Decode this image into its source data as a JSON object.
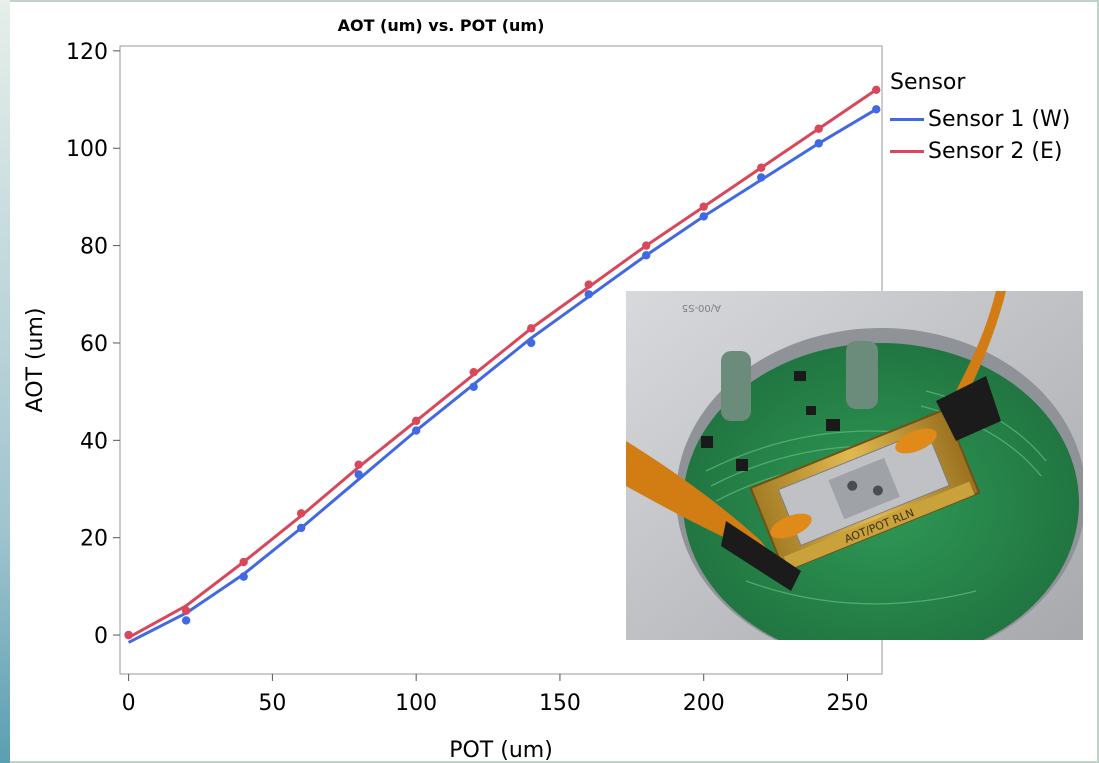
{
  "chart_data": {
    "type": "scatter",
    "title": "AOT (um) vs. POT (um)",
    "xlabel": "POT (um)",
    "ylabel": "AOT (um)",
    "xlim": [
      -3,
      262
    ],
    "ylim": [
      -8,
      121
    ],
    "xticks": [
      0,
      50,
      100,
      150,
      200,
      250
    ],
    "yticks": [
      0,
      20,
      40,
      60,
      80,
      100,
      120
    ],
    "grid": false,
    "legend_title": "Sensor",
    "legend_position": "right",
    "series": [
      {
        "name": "Sensor 1 (W)",
        "color": "#4169e1",
        "x": [
          0,
          20,
          40,
          60,
          80,
          100,
          120,
          140,
          160,
          180,
          200,
          220,
          240,
          260
        ],
        "y": [
          0,
          3,
          12,
          22,
          33,
          42,
          51,
          60,
          70,
          78,
          86,
          94,
          101,
          108
        ],
        "fit_x": [
          0,
          20,
          40,
          60,
          80,
          100,
          120,
          140,
          160,
          180,
          200,
          220,
          240,
          260
        ],
        "fit_y": [
          -1.5,
          4.5,
          12.5,
          22,
          32,
          42,
          51.5,
          61,
          69.5,
          78,
          86,
          93.5,
          101,
          108
        ]
      },
      {
        "name": "Sensor 2 (E)",
        "color": "#d9475b",
        "x": [
          0,
          20,
          40,
          60,
          80,
          100,
          120,
          140,
          160,
          180,
          200,
          220,
          240,
          260
        ],
        "y": [
          0,
          5,
          15,
          25,
          35,
          44,
          54,
          63,
          72,
          80,
          88,
          96,
          104,
          112
        ],
        "fit_x": [
          0,
          20,
          40,
          60,
          80,
          100,
          120,
          140,
          160,
          180,
          200,
          220,
          240,
          260
        ],
        "fit_y": [
          -0.5,
          6,
          15,
          24.5,
          34.5,
          44,
          53.5,
          63,
          71.5,
          80,
          88,
          96,
          104,
          112
        ]
      }
    ]
  }
}
